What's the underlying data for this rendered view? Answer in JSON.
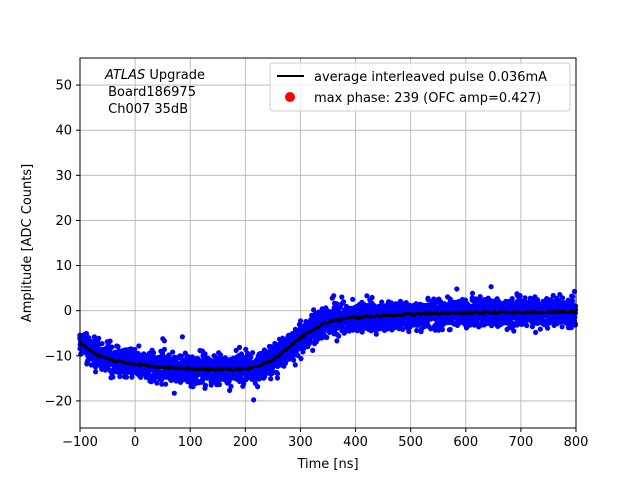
{
  "chart_data": {
    "type": "scatter",
    "title": "",
    "xlabel": "Time [ns]",
    "ylabel": "Amplitude [ADC Counts]",
    "xlim": [
      -100,
      800
    ],
    "ylim": [
      -26,
      56
    ],
    "xticks": [
      -100,
      0,
      100,
      200,
      300,
      400,
      500,
      600,
      700,
      800
    ],
    "yticks": [
      -20,
      -10,
      0,
      10,
      20,
      30,
      40,
      50
    ],
    "xtick_labels": [
      "−100",
      "0",
      "100",
      "200",
      "300",
      "400",
      "500",
      "600",
      "700",
      "800"
    ],
    "ytick_labels": [
      "−20",
      "−10",
      "0",
      "10",
      "20",
      "30",
      "40",
      "50"
    ],
    "grid": true,
    "legend_position": "top-right",
    "annotation": {
      "italic": "ATLAS",
      "rest": " Upgrade",
      "line2": " Board186975",
      "line3": " Ch007 35dB"
    },
    "series": [
      {
        "name": "average interleaved pulse 0.036mA",
        "kind": "line",
        "color": "#000000",
        "x": [
          -100,
          -80,
          -60,
          -40,
          -20,
          0,
          25,
          50,
          75,
          100,
          125,
          150,
          175,
          200,
          220,
          240,
          260,
          280,
          300,
          320,
          340,
          360,
          380,
          400,
          430,
          460,
          500,
          550,
          600,
          650,
          700,
          750,
          800
        ],
        "y": [
          -7,
          -9,
          -10.3,
          -11,
          -11.5,
          -11.8,
          -12.2,
          -12.5,
          -12.7,
          -12.9,
          -13,
          -13,
          -13,
          -12.9,
          -12.5,
          -11.5,
          -10,
          -8,
          -6,
          -4.3,
          -3,
          -2.2,
          -1.8,
          -1.5,
          -1.2,
          -1,
          -0.8,
          -0.6,
          -0.5,
          -0.4,
          -0.4,
          -0.3,
          -0.3
        ]
      },
      {
        "name": "max phase: 239 (OFC amp=0.427)",
        "kind": "point",
        "color": "#ff0000",
        "x": [],
        "y": []
      },
      {
        "name": "",
        "kind": "scatter",
        "color": "#0000ff",
        "note_spread": "Dense blue scatter around the average curve with spread of about ±5 ADC counts, extremes about ±10"
      }
    ]
  }
}
